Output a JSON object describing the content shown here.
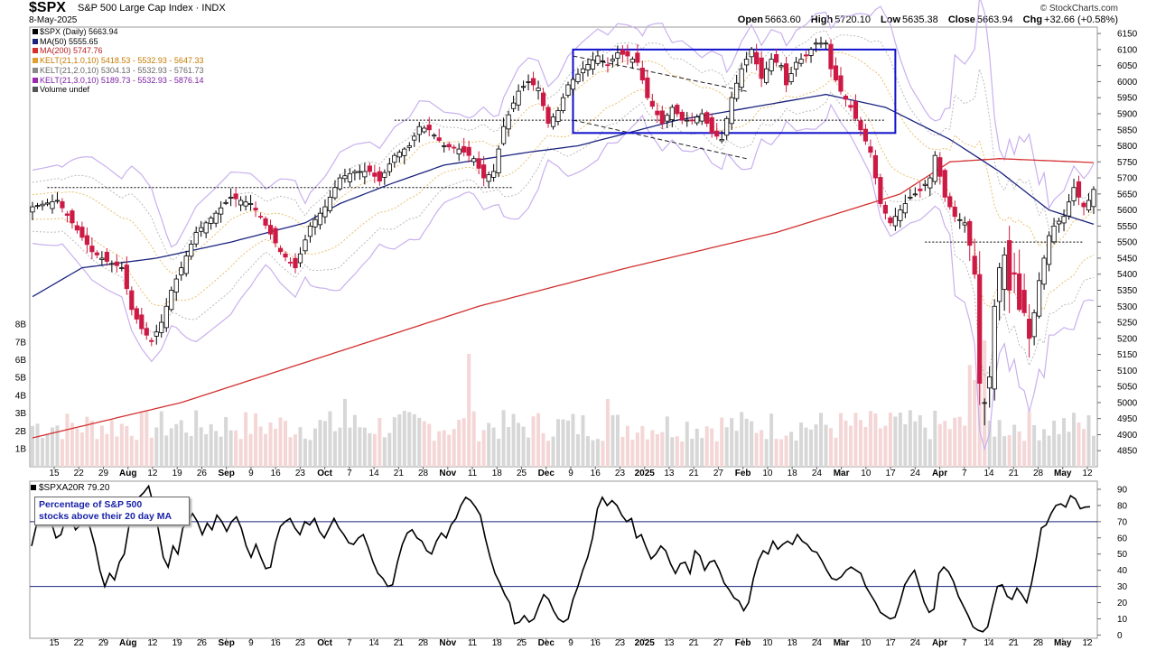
{
  "header": {
    "symbol": "$SPX",
    "name": "S&P 500 Large Cap Index",
    "exchange": "INDX",
    "date": "8-May-2025",
    "watermark": "© StockCharts.com",
    "open_label": "Open",
    "open": "5663.60",
    "high_label": "High",
    "high": "5720.10",
    "low_label": "Low",
    "low": "5635.38",
    "close_label": "Close",
    "close": "5663.94",
    "chg_label": "Chg",
    "chg": "+32.66 (+0.58%)"
  },
  "legend": [
    {
      "text": "$SPX (Daily) 5663.94",
      "color": "#000000"
    },
    {
      "text": "MA(50) 5555.65",
      "color": "#1a237e"
    },
    {
      "text": "MA(200) 5747.76",
      "color": "#d32f2f"
    },
    {
      "text": "KELT(21,1.0,10) 5418.53 - 5532.93 - 5647.33",
      "color": "#e0a030"
    },
    {
      "text": "KELT(21,2.0,10) 5304.13 - 5532.93 - 5761.73",
      "color": "#888888"
    },
    {
      "text": "KELT(21,3.0,10) 5189.73 - 5532.93 - 5876.14",
      "color": "#9c27b0"
    },
    {
      "text": "Volume undef",
      "color": "#555555"
    }
  ],
  "colors": {
    "up": "#000000",
    "down": "#cc1a44",
    "ma50": "#1a237e",
    "ma200": "#d32f2f",
    "kelt1": "#e8c070",
    "kelt2": "#bbbbbb",
    "kelt3": "#c9b0ee",
    "box": "#1010cc"
  },
  "indicator": {
    "title": "$SPXA20R 79.20",
    "callout_line1": "Percentage of S&P 500",
    "callout_line2": "stocks above their 20 day MA"
  },
  "chart_data": [
    {
      "type": "candlestick",
      "title": "$SPX (Daily) 5663.94",
      "ylim": [
        4800,
        6170
      ],
      "yticks": [
        4850,
        4900,
        4950,
        5000,
        5050,
        5100,
        5150,
        5200,
        5250,
        5300,
        5350,
        5400,
        5450,
        5500,
        5550,
        5600,
        5650,
        5700,
        5750,
        5800,
        5850,
        5900,
        5950,
        6000,
        6050,
        6100,
        6150
      ],
      "volume_axis_labels": [
        "1B",
        "2B",
        "3B",
        "4B",
        "5B",
        "6B",
        "7B",
        "8B"
      ],
      "x_labels": [
        "15",
        "22",
        "29",
        "Aug",
        "12",
        "19",
        "26",
        "Sep",
        "9",
        "16",
        "23",
        "Oct",
        "7",
        "14",
        "21",
        "28",
        "Nov",
        "11",
        "18",
        "25",
        "Dec",
        "9",
        "16",
        "23",
        "2025",
        "13",
        "21",
        "27",
        "Feb",
        "10",
        "18",
        "24",
        "Mar",
        "10",
        "17",
        "24",
        "Apr",
        "7",
        "14",
        "21",
        "28",
        "May",
        "12"
      ],
      "bold_labels": [
        "Aug",
        "Sep",
        "Oct",
        "Nov",
        "Dec",
        "2025",
        "Feb",
        "Mar",
        "Apr",
        "May"
      ],
      "close_anchors": [
        [
          0,
          5610
        ],
        [
          5,
          5630
        ],
        [
          8,
          5560
        ],
        [
          12,
          5470
        ],
        [
          15,
          5440
        ],
        [
          18,
          5420
        ],
        [
          20,
          5290
        ],
        [
          22,
          5230
        ],
        [
          24,
          5190
        ],
        [
          26,
          5250
        ],
        [
          28,
          5350
        ],
        [
          30,
          5420
        ],
        [
          33,
          5530
        ],
        [
          37,
          5590
        ],
        [
          40,
          5640
        ],
        [
          44,
          5620
        ],
        [
          46,
          5580
        ],
        [
          50,
          5470
        ],
        [
          53,
          5420
        ],
        [
          56,
          5550
        ],
        [
          59,
          5610
        ],
        [
          62,
          5700
        ],
        [
          65,
          5720
        ],
        [
          68,
          5720
        ],
        [
          70,
          5690
        ],
        [
          73,
          5770
        ],
        [
          76,
          5800
        ],
        [
          78,
          5860
        ],
        [
          80,
          5850
        ],
        [
          83,
          5800
        ],
        [
          86,
          5790
        ],
        [
          89,
          5760
        ],
        [
          91,
          5700
        ],
        [
          93,
          5720
        ],
        [
          95,
          5860
        ],
        [
          98,
          5970
        ],
        [
          100,
          6000
        ],
        [
          102,
          5980
        ],
        [
          104,
          5870
        ],
        [
          106,
          5910
        ],
        [
          108,
          5990
        ],
        [
          111,
          6040
        ],
        [
          114,
          6080
        ],
        [
          116,
          6050
        ],
        [
          118,
          6090
        ],
        [
          120,
          6080
        ],
        [
          122,
          6060
        ],
        [
          124,
          5950
        ],
        [
          127,
          5870
        ],
        [
          129,
          5920
        ],
        [
          131,
          5880
        ],
        [
          133,
          5880
        ],
        [
          135,
          5900
        ],
        [
          137,
          5840
        ],
        [
          139,
          5820
        ],
        [
          141,
          5950
        ],
        [
          143,
          6040
        ],
        [
          145,
          6100
        ],
        [
          147,
          6010
        ],
        [
          149,
          6070
        ],
        [
          151,
          6050
        ],
        [
          152,
          5990
        ],
        [
          154,
          6060
        ],
        [
          156,
          6080
        ],
        [
          158,
          6120
        ],
        [
          160,
          6120
        ],
        [
          161,
          6040
        ],
        [
          163,
          5970
        ],
        [
          165,
          5920
        ],
        [
          167,
          5850
        ],
        [
          169,
          5780
        ],
        [
          171,
          5620
        ],
        [
          173,
          5560
        ],
        [
          175,
          5600
        ],
        [
          177,
          5640
        ],
        [
          179,
          5660
        ],
        [
          181,
          5700
        ],
        [
          182,
          5770
        ],
        [
          184,
          5640
        ],
        [
          186,
          5580
        ],
        [
          188,
          5560
        ],
        [
          189,
          5490
        ],
        [
          190,
          5400
        ],
        [
          191,
          5060
        ],
        [
          192,
          5000
        ],
        [
          193,
          5080
        ],
        [
          194,
          5300
        ],
        [
          195,
          5420
        ],
        [
          196,
          5460
        ],
        [
          197,
          5350
        ],
        [
          198,
          5400
        ],
        [
          199,
          5290
        ],
        [
          200,
          5280
        ],
        [
          201,
          5200
        ],
        [
          202,
          5280
        ],
        [
          203,
          5380
        ],
        [
          205,
          5520
        ],
        [
          206,
          5550
        ],
        [
          208,
          5580
        ],
        [
          210,
          5670
        ],
        [
          212,
          5610
        ],
        [
          213,
          5630
        ],
        [
          214,
          5663.94
        ]
      ],
      "ma50": [
        [
          0,
          5330
        ],
        [
          10,
          5420
        ],
        [
          25,
          5450
        ],
        [
          40,
          5500
        ],
        [
          55,
          5560
        ],
        [
          62,
          5620
        ],
        [
          72,
          5680
        ],
        [
          83,
          5740
        ],
        [
          100,
          5780
        ],
        [
          110,
          5800
        ],
        [
          120,
          5840
        ],
        [
          130,
          5880
        ],
        [
          145,
          5920
        ],
        [
          160,
          5960
        ],
        [
          172,
          5920
        ],
        [
          185,
          5820
        ],
        [
          195,
          5720
        ],
        [
          205,
          5600
        ],
        [
          214,
          5555.65
        ]
      ],
      "ma200": [
        [
          0,
          4890
        ],
        [
          30,
          5000
        ],
        [
          60,
          5150
        ],
        [
          90,
          5300
        ],
        [
          120,
          5420
        ],
        [
          150,
          5530
        ],
        [
          175,
          5650
        ],
        [
          185,
          5750
        ],
        [
          195,
          5760
        ],
        [
          214,
          5747.76
        ]
      ],
      "annotations": {
        "box_x": [
          109,
          174
        ],
        "box_y": [
          5840,
          6100
        ],
        "resistance_line_1": {
          "x": [
            3,
            97
          ],
          "y": 5670
        },
        "resistance_line_2": {
          "x": [
            73,
            172
          ],
          "y": 5880
        },
        "support_line": {
          "x": [
            180,
            212
          ],
          "y": 5500
        },
        "channel_top": {
          "x": [
            109,
            144
          ],
          "y": [
            6080,
            5970
          ]
        },
        "channel_bottom": {
          "x": [
            109,
            144
          ],
          "y": [
            5880,
            5760
          ]
        }
      }
    },
    {
      "type": "line",
      "title": "$SPXA20R 79.20",
      "ylim": [
        -2,
        95
      ],
      "yticks": [
        0,
        10,
        20,
        30,
        40,
        50,
        60,
        70,
        80,
        90
      ],
      "hlines": [
        30,
        70
      ],
      "values": [
        55,
        68,
        78,
        76,
        70,
        60,
        62,
        72,
        73,
        65,
        68,
        75,
        66,
        55,
        40,
        30,
        38,
        34,
        45,
        50,
        68,
        80,
        85,
        88,
        92,
        80,
        65,
        48,
        42,
        55,
        50,
        66,
        70,
        75,
        70,
        62,
        69,
        65,
        74,
        70,
        64,
        70,
        73,
        66,
        55,
        48,
        56,
        48,
        41,
        42,
        57,
        67,
        70,
        72,
        66,
        62,
        70,
        68,
        72,
        64,
        60,
        66,
        72,
        66,
        62,
        57,
        56,
        60,
        62,
        54,
        45,
        38,
        35,
        30,
        31,
        45,
        56,
        63,
        65,
        60,
        58,
        52,
        50,
        58,
        63,
        60,
        68,
        72,
        80,
        85,
        83,
        79,
        74,
        60,
        48,
        38,
        32,
        25,
        20,
        7,
        8,
        12,
        8,
        10,
        18,
        25,
        22,
        15,
        10,
        8,
        10,
        22,
        30,
        40,
        48,
        60,
        78,
        85,
        80,
        83,
        80,
        74,
        70,
        72,
        60,
        62,
        54,
        47,
        50,
        55,
        52,
        44,
        38,
        44,
        45,
        38,
        52,
        49,
        40,
        45,
        46,
        40,
        32,
        28,
        23,
        21,
        15,
        20,
        35,
        46,
        52,
        50,
        58,
        53,
        56,
        58,
        56,
        62,
        58,
        56,
        52,
        51,
        46,
        40,
        35,
        34,
        36,
        40,
        42,
        40,
        38,
        30,
        25,
        20,
        14,
        12,
        10,
        11,
        20,
        31,
        36,
        40,
        30,
        20,
        14,
        16,
        38,
        42,
        39,
        33,
        24,
        18,
        12,
        5,
        3,
        2,
        5,
        18,
        30,
        31,
        24,
        22,
        29,
        25,
        20,
        32,
        48,
        66,
        68,
        75,
        80,
        81,
        79,
        86,
        84,
        78,
        79,
        79.2
      ]
    }
  ]
}
